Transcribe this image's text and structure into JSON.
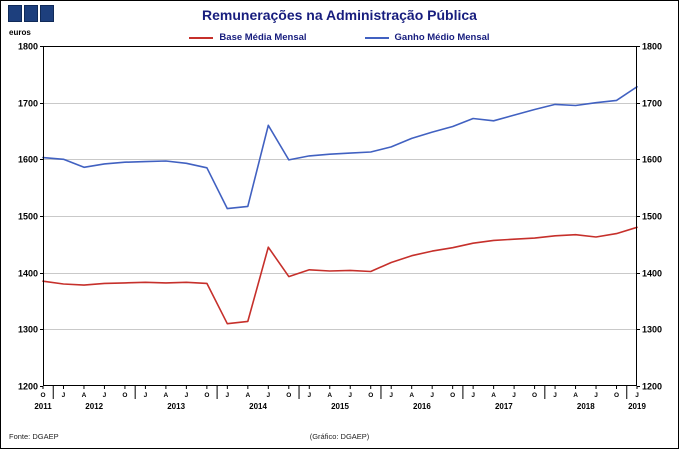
{
  "figure": {
    "title": "Remunerações na Administração Pública",
    "y_unit_label": "euros",
    "source_label": "Fonte: DGAEP",
    "credit_label": "(Gráfico: DGAEP)"
  },
  "legend": [
    {
      "label": "Base Média Mensal",
      "color": "#c6302b"
    },
    {
      "label": "Ganho Médio Mensal",
      "color": "#4161c1"
    }
  ],
  "chart_data": {
    "type": "line",
    "title": "Remunerações na Administração Pública",
    "xlabel": "",
    "ylabel": "euros",
    "ylim": [
      1200,
      1800
    ],
    "ytick_step": 100,
    "grid": true,
    "legend_position": "top-center",
    "x_tick_letters": [
      "O",
      "J",
      "A",
      "J",
      "O",
      "J",
      "A",
      "J",
      "O",
      "J",
      "A",
      "J",
      "O",
      "J",
      "A",
      "J",
      "O",
      "J",
      "A",
      "J",
      "O",
      "J",
      "A",
      "J",
      "O",
      "J",
      "A",
      "J",
      "O",
      "J"
    ],
    "year_labels": [
      {
        "label": "2011",
        "at": 0
      },
      {
        "label": "2012",
        "at": 2.5
      },
      {
        "label": "2013",
        "at": 6.5
      },
      {
        "label": "2014",
        "at": 10.5
      },
      {
        "label": "2015",
        "at": 14.5
      },
      {
        "label": "2016",
        "at": 18.5
      },
      {
        "label": "2017",
        "at": 22.5
      },
      {
        "label": "2018",
        "at": 26.5
      },
      {
        "label": "2019",
        "at": 29
      }
    ],
    "year_group_boundaries_after_index": [
      0,
      4,
      8,
      12,
      16,
      20,
      24,
      28
    ],
    "series": [
      {
        "name": "Base Média Mensal",
        "color": "#c6302b",
        "values": [
          1385,
          1380,
          1378,
          1381,
          1382,
          1383,
          1382,
          1383,
          1381,
          1310,
          1314,
          1445,
          1393,
          1405,
          1403,
          1404,
          1402,
          1418,
          1430,
          1438,
          1444,
          1452,
          1457,
          1459,
          1461,
          1465,
          1467,
          1463,
          1469,
          1480
        ]
      },
      {
        "name": "Ganho Médio Mensal",
        "color": "#4161c1",
        "values": [
          1603,
          1600,
          1586,
          1592,
          1595,
          1596,
          1597,
          1593,
          1585,
          1513,
          1517,
          1660,
          1599,
          1606,
          1609,
          1611,
          1613,
          1622,
          1637,
          1648,
          1658,
          1672,
          1668,
          1678,
          1688,
          1697,
          1695,
          1700,
          1704,
          1728
        ]
      }
    ]
  }
}
